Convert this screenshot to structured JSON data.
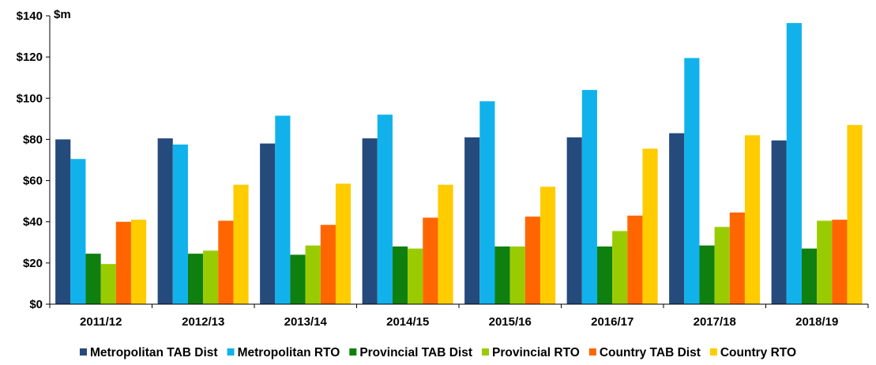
{
  "chart_data": {
    "type": "bar",
    "unit_label": "$m",
    "categories": [
      "2011/12",
      "2012/13",
      "2013/14",
      "2014/15",
      "2015/16",
      "2016/17",
      "2017/18",
      "2018/19"
    ],
    "series": [
      {
        "name": "Metropolitan TAB Dist",
        "color": "#254a7c",
        "values": [
          80,
          80.5,
          78,
          80.5,
          81,
          81,
          83,
          79.5
        ]
      },
      {
        "name": "Metropolitan RTO",
        "color": "#11b2ec",
        "values": [
          70.5,
          77.5,
          91.5,
          92,
          98.5,
          104,
          119.5,
          136.5
        ]
      },
      {
        "name": "Provincial TAB Dist",
        "color": "#0f7f0f",
        "values": [
          24.5,
          24.5,
          24,
          28,
          28,
          28,
          28.5,
          27
        ]
      },
      {
        "name": "Provincial RTO",
        "color": "#99cc00",
        "values": [
          19.5,
          26,
          28.5,
          27,
          28,
          35.5,
          37.5,
          40.5
        ]
      },
      {
        "name": "Country TAB Dist",
        "color": "#ff6600",
        "values": [
          40,
          40.5,
          38.5,
          42,
          42.5,
          43,
          44.5,
          41
        ]
      },
      {
        "name": "Country RTO",
        "color": "#ffcc00",
        "values": [
          41,
          58,
          58.5,
          58,
          57,
          75.5,
          82,
          87
        ]
      }
    ],
    "y_tick_labels": [
      "$0",
      "$20",
      "$40",
      "$60",
      "$80",
      "$100",
      "$120",
      "$140"
    ],
    "y_ticks": [
      0,
      20,
      40,
      60,
      80,
      100,
      120,
      140
    ],
    "ylim": [
      0,
      140
    ],
    "grid": false,
    "legend_position": "bottom"
  }
}
